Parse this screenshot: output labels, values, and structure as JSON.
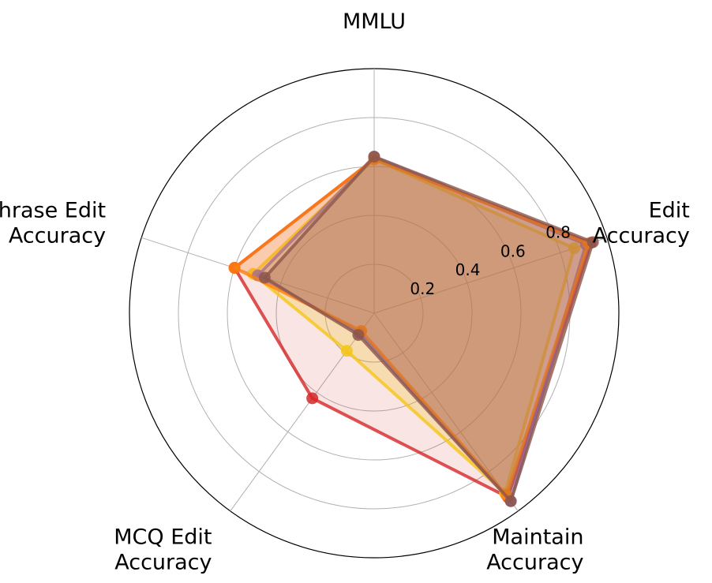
{
  "chart_data": {
    "type": "radar",
    "title": "",
    "axes": [
      "MMLU",
      "Edit\nAccuracy",
      "Maintain\nAccuracy",
      "MCQ Edit\nAccuracy",
      "Paraphrase Edit\nAccuracy"
    ],
    "rticks": [
      0.2,
      0.4,
      0.6,
      0.8
    ],
    "rlim": [
      0,
      1.0
    ],
    "grid": true,
    "legend": "none",
    "series": [
      {
        "color": "#d62728",
        "values": [
          0.63,
          0.93,
          0.93,
          0.43,
          0.6
        ],
        "fill_opacity": 0.12
      },
      {
        "color": "#f5c518",
        "values": [
          0.63,
          0.86,
          0.91,
          0.19,
          0.52
        ],
        "fill_opacity": 0.25
      },
      {
        "color": "#8c6bb1",
        "values": [
          0.64,
          0.91,
          0.95,
          0.1,
          0.5
        ],
        "fill_opacity": 0.25
      },
      {
        "color": "#ff7f0e",
        "values": [
          0.63,
          0.92,
          0.92,
          0.09,
          0.6
        ],
        "fill_opacity": 0.25
      },
      {
        "color": "#8c564b",
        "values": [
          0.64,
          0.94,
          0.95,
          0.11,
          0.47
        ],
        "fill_opacity": 0.25
      }
    ]
  }
}
